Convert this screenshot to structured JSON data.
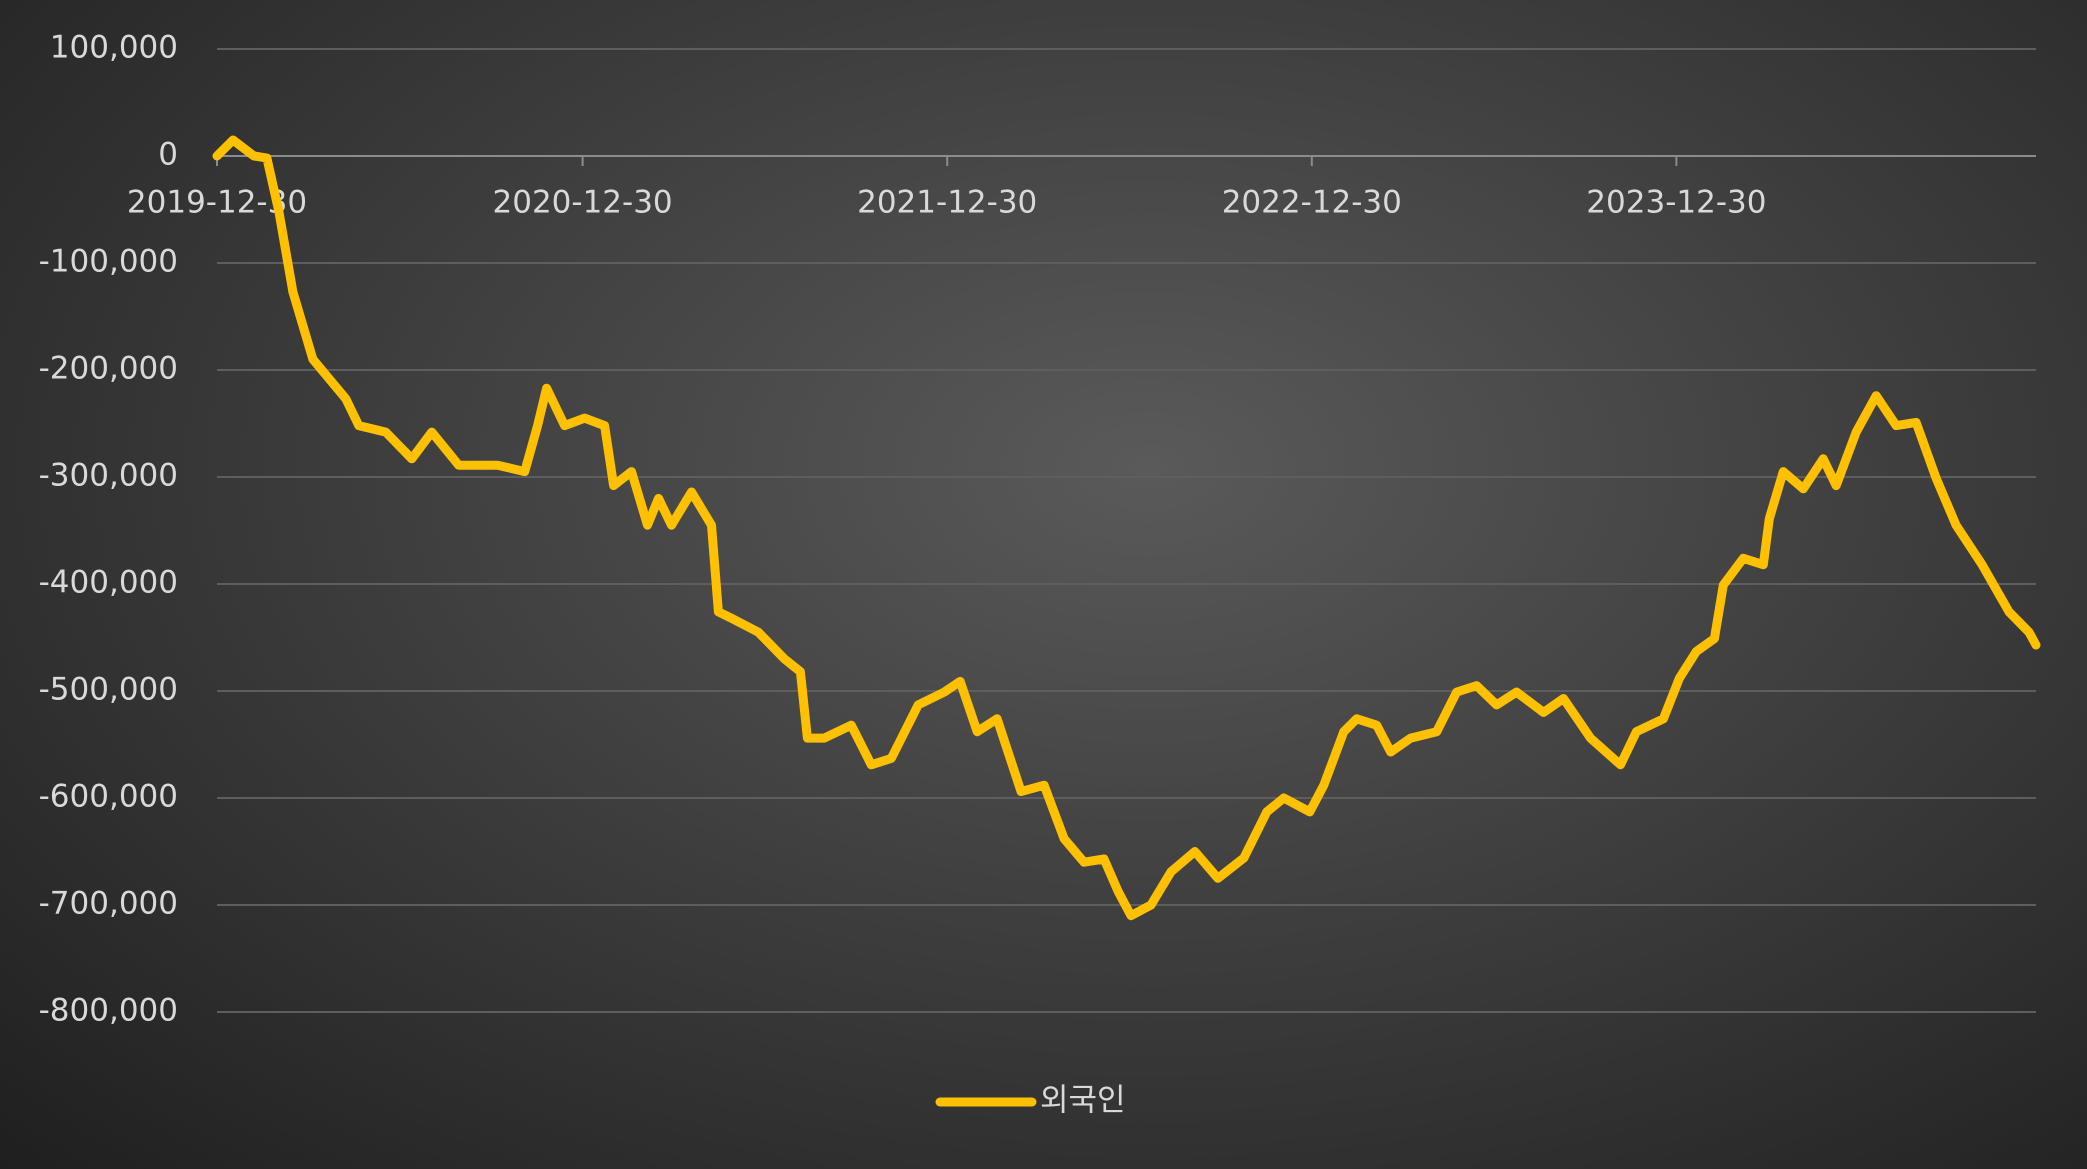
{
  "chart_data": {
    "type": "line",
    "x": [
      "2019-12-30",
      "2020-01-15",
      "2020-02-05",
      "2020-02-18",
      "2020-03-01",
      "2020-03-15",
      "2020-04-04",
      "2020-05-07",
      "2020-05-20",
      "2020-06-16",
      "2020-07-12",
      "2020-08-01",
      "2020-08-28",
      "2020-10-06",
      "2020-11-02",
      "2020-11-15",
      "2020-11-24",
      "2020-12-12",
      "2021-01-01",
      "2021-01-21",
      "2021-01-30",
      "2021-02-17",
      "2021-03-05",
      "2021-03-16",
      "2021-03-29",
      "2021-04-18",
      "2021-05-08",
      "2021-05-15",
      "2021-05-28",
      "2021-06-24",
      "2021-07-20",
      "2021-08-05",
      "2021-08-12",
      "2021-08-29",
      "2021-09-25",
      "2021-10-15",
      "2021-11-04",
      "2021-12-01",
      "2021-12-27",
      "2022-01-12",
      "2022-01-29",
      "2022-02-18",
      "2022-03-14",
      "2022-04-06",
      "2022-04-26",
      "2022-05-16",
      "2022-06-05",
      "2022-06-19",
      "2022-07-02",
      "2022-07-22",
      "2022-08-11",
      "2022-09-04",
      "2022-09-27",
      "2022-10-23",
      "2022-11-15",
      "2022-12-02",
      "2022-12-28",
      "2023-01-11",
      "2023-01-31",
      "2023-02-13",
      "2023-03-05",
      "2023-03-19",
      "2023-04-08",
      "2023-05-04",
      "2023-05-24",
      "2023-06-13",
      "2023-07-03",
      "2023-07-23",
      "2023-08-19",
      "2023-09-08",
      "2023-10-05",
      "2023-11-04",
      "2023-11-20",
      "2023-12-17",
      "2024-01-02",
      "2024-01-19",
      "2024-02-06",
      "2024-02-15",
      "2024-03-06",
      "2024-03-26",
      "2024-04-01",
      "2024-04-15",
      "2024-05-05",
      "2024-05-25",
      "2024-06-07",
      "2024-06-27",
      "2024-07-17",
      "2024-08-06",
      "2024-08-26",
      "2024-09-15",
      "2024-10-05",
      "2024-10-31",
      "2024-11-27",
      "2024-12-17",
      "2024-12-24"
    ],
    "series": [
      {
        "name": "외국인",
        "color": "#ffc000",
        "values": [
          0,
          15000,
          0,
          -2000,
          -52000,
          -127000,
          -190000,
          -227000,
          -252000,
          -258000,
          -283000,
          -258000,
          -289000,
          -289000,
          -295000,
          -252000,
          -217000,
          -252000,
          -245000,
          -252000,
          -308000,
          -295000,
          -345000,
          -320000,
          -345000,
          -314000,
          -345000,
          -426000,
          -432000,
          -445000,
          -470000,
          -482000,
          -544000,
          -544000,
          -532000,
          -569000,
          -563000,
          -513000,
          -501000,
          -491000,
          -538000,
          -526000,
          -594000,
          -588000,
          -638000,
          -660000,
          -657000,
          -687000,
          -710000,
          -700000,
          -669000,
          -650000,
          -675000,
          -656000,
          -613000,
          -600000,
          -613000,
          -588000,
          -538000,
          -526000,
          -532000,
          -557000,
          -544000,
          -538000,
          -501000,
          -495000,
          -513000,
          -501000,
          -520000,
          -507000,
          -544000,
          -569000,
          -538000,
          -526000,
          -488000,
          -463000,
          -451000,
          -401000,
          -376000,
          -382000,
          -339000,
          -295000,
          -311000,
          -283000,
          -308000,
          -258000,
          -224000,
          -252000,
          -249000,
          -301000,
          -345000,
          -382000,
          -426000,
          -445000,
          -457000
        ]
      }
    ],
    "xlim": [
      "2019-12-30",
      "2024-12-24"
    ],
    "xticks": [
      "2019-12-30",
      "2020-12-30",
      "2021-12-30",
      "2022-12-30",
      "2023-12-30"
    ],
    "ylim": [
      -800000,
      100000
    ],
    "yticks": [
      {
        "value": -800000,
        "label": "-800,000"
      },
      {
        "value": -700000,
        "label": "-700,000"
      },
      {
        "value": -600000,
        "label": "-600,000"
      },
      {
        "value": -500000,
        "label": "-500,000"
      },
      {
        "value": -400000,
        "label": "-400,000"
      },
      {
        "value": -300000,
        "label": "-300,000"
      },
      {
        "value": -200000,
        "label": "-200,000"
      },
      {
        "value": -100000,
        "label": "-100,000"
      },
      0,
      {
        "value": 100000,
        "label": "100,000"
      }
    ],
    "grid": true,
    "legend": "bottom"
  }
}
